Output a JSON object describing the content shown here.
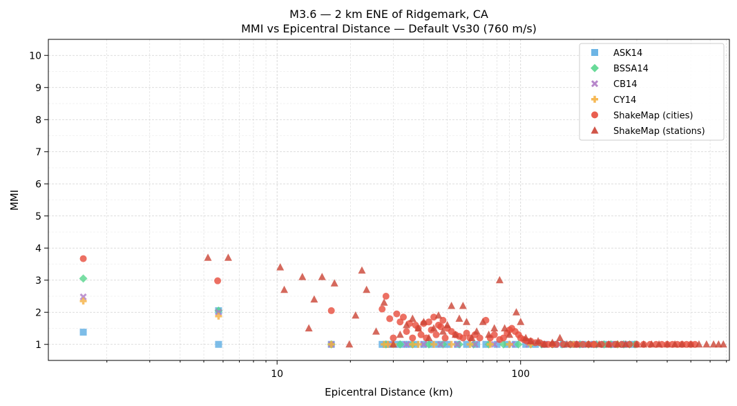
{
  "chart_data": {
    "type": "scatter",
    "title": "M3.6 — 2 km ENE of Ridgemark, CA",
    "subtitle": "MMI vs Epicentral Distance — Default Vs30 (760 m/s)",
    "xlabel": "Epicentral Distance (km)",
    "ylabel": "MMI",
    "xscale": "log",
    "xlim": [
      1.15,
      720
    ],
    "ylim": [
      0.5,
      10.5
    ],
    "xticks": [
      10,
      100
    ],
    "xtick_labels": [
      "10",
      "100"
    ],
    "yticks": [
      1,
      2,
      3,
      4,
      5,
      6,
      7,
      8,
      9,
      10
    ],
    "ytick_labels": [
      "1",
      "2",
      "3",
      "4",
      "5",
      "6",
      "7",
      "8",
      "9",
      "10"
    ],
    "grid": true,
    "legend_position": "top-right",
    "series": [
      {
        "name": "ASK14",
        "marker": "square",
        "color": "#5DADE2",
        "points": [
          [
            1.6,
            1.38
          ],
          [
            5.75,
            2.05
          ],
          [
            5.75,
            1.0
          ],
          [
            16.7,
            1.0
          ],
          [
            27,
            1.0
          ],
          [
            28,
            1.0
          ],
          [
            29,
            1.0
          ],
          [
            31,
            1.0
          ],
          [
            33,
            1.0
          ],
          [
            35,
            1.0
          ],
          [
            37,
            1.0
          ],
          [
            40,
            1.0
          ],
          [
            43,
            1.0
          ],
          [
            46,
            1.0
          ],
          [
            50,
            1.0
          ],
          [
            55,
            1.0
          ],
          [
            60,
            1.0
          ],
          [
            66,
            1.0
          ],
          [
            72,
            1.0
          ],
          [
            80,
            1.0
          ],
          [
            88,
            1.0
          ],
          [
            95,
            1.0
          ],
          [
            105,
            1.0
          ],
          [
            115,
            1.0
          ],
          [
            125,
            1.0
          ],
          [
            138,
            1.0
          ],
          [
            150,
            1.0
          ],
          [
            165,
            1.0
          ],
          [
            180,
            1.0
          ],
          [
            200,
            1.0
          ],
          [
            220,
            1.0
          ],
          [
            240,
            1.0
          ],
          [
            265,
            1.0
          ],
          [
            290,
            1.0
          ]
        ]
      },
      {
        "name": "BSSA14",
        "marker": "diamond",
        "color": "#58D68D",
        "points": [
          [
            1.6,
            3.05
          ],
          [
            5.75,
            2.05
          ],
          [
            16.7,
            1.0
          ],
          [
            28,
            1.0
          ],
          [
            32,
            1.0
          ],
          [
            36,
            1.0
          ],
          [
            42,
            1.0
          ],
          [
            48,
            1.0
          ],
          [
            56,
            1.0
          ],
          [
            64,
            1.0
          ],
          [
            74,
            1.0
          ],
          [
            85,
            1.0
          ],
          [
            98,
            1.0
          ],
          [
            110,
            1.0
          ],
          [
            122,
            1.0
          ],
          [
            135,
            1.0
          ],
          [
            148,
            1.0
          ],
          [
            160,
            1.0
          ],
          [
            175,
            1.0
          ],
          [
            190,
            1.0
          ],
          [
            205,
            1.0
          ],
          [
            220,
            1.0
          ],
          [
            235,
            1.0
          ],
          [
            250,
            1.0
          ],
          [
            265,
            1.0
          ],
          [
            280,
            1.0
          ],
          [
            295,
            1.0
          ]
        ]
      },
      {
        "name": "CB14",
        "marker": "x",
        "color": "#AF7AC5",
        "points": [
          [
            1.6,
            2.48
          ],
          [
            5.75,
            2.0
          ],
          [
            16.7,
            1.0
          ],
          [
            29,
            1.0
          ],
          [
            34,
            1.0
          ],
          [
            40,
            1.0
          ],
          [
            47,
            1.0
          ],
          [
            55,
            1.0
          ],
          [
            65,
            1.0
          ],
          [
            78,
            1.0
          ],
          [
            92,
            1.0
          ],
          [
            108,
            1.0
          ],
          [
            125,
            1.0
          ],
          [
            145,
            1.0
          ],
          [
            170,
            1.0
          ],
          [
            200,
            1.0
          ],
          [
            235,
            1.0
          ],
          [
            270,
            1.0
          ]
        ]
      },
      {
        "name": "CY14",
        "marker": "plus",
        "color": "#F5B041",
        "points": [
          [
            1.6,
            2.35
          ],
          [
            5.75,
            1.88
          ],
          [
            16.7,
            1.0
          ],
          [
            27.5,
            1.0
          ],
          [
            28.5,
            1.0
          ],
          [
            30,
            1.0
          ],
          [
            36,
            1.0
          ],
          [
            38,
            1.0
          ],
          [
            44,
            1.0
          ],
          [
            52,
            1.0
          ],
          [
            62,
            1.0
          ],
          [
            75,
            1.0
          ],
          [
            90,
            1.0
          ],
          [
            110,
            1.0
          ],
          [
            135,
            1.0
          ],
          [
            165,
            1.0
          ],
          [
            200,
            1.0
          ],
          [
            250,
            1.0
          ]
        ]
      },
      {
        "name": "ShakeMap (cities)",
        "marker": "circle",
        "color": "#E74C3C",
        "points": [
          [
            1.6,
            3.67
          ],
          [
            5.7,
            2.98
          ],
          [
            16.7,
            2.05
          ],
          [
            27,
            2.1
          ],
          [
            28,
            2.5
          ],
          [
            29,
            1.8
          ],
          [
            30,
            1.2
          ],
          [
            31,
            1.95
          ],
          [
            32,
            1.7
          ],
          [
            33,
            1.85
          ],
          [
            34,
            1.4
          ],
          [
            35,
            1.65
          ],
          [
            36,
            1.2
          ],
          [
            37,
            1.6
          ],
          [
            38,
            1.5
          ],
          [
            39,
            1.3
          ],
          [
            40,
            1.65
          ],
          [
            41,
            1.2
          ],
          [
            42,
            1.7
          ],
          [
            43,
            1.45
          ],
          [
            44,
            1.85
          ],
          [
            45,
            1.3
          ],
          [
            46,
            1.6
          ],
          [
            47,
            1.55
          ],
          [
            48,
            1.75
          ],
          [
            49,
            1.2
          ],
          [
            50,
            1.5
          ],
          [
            52,
            1.4
          ],
          [
            54,
            1.3
          ],
          [
            56,
            1.25
          ],
          [
            58,
            1.2
          ],
          [
            60,
            1.35
          ],
          [
            62,
            1.2
          ],
          [
            65,
            1.3
          ],
          [
            68,
            1.2
          ],
          [
            72,
            1.75
          ],
          [
            75,
            1.2
          ],
          [
            78,
            1.3
          ],
          [
            82,
            1.15
          ],
          [
            85,
            1.2
          ],
          [
            88,
            1.35
          ],
          [
            90,
            1.45
          ],
          [
            92,
            1.5
          ],
          [
            95,
            1.4
          ],
          [
            98,
            1.3
          ],
          [
            100,
            1.2
          ],
          [
            103,
            1.15
          ],
          [
            106,
            1.1
          ],
          [
            110,
            1.1
          ],
          [
            115,
            1.05
          ],
          [
            120,
            1.05
          ],
          [
            125,
            1.0
          ],
          [
            130,
            1.0
          ],
          [
            135,
            1.0
          ],
          [
            140,
            1.0
          ],
          [
            150,
            1.0
          ],
          [
            160,
            1.0
          ],
          [
            170,
            1.0
          ],
          [
            180,
            1.0
          ],
          [
            190,
            1.0
          ],
          [
            200,
            1.0
          ],
          [
            215,
            1.0
          ],
          [
            230,
            1.0
          ],
          [
            245,
            1.0
          ],
          [
            260,
            1.0
          ],
          [
            280,
            1.0
          ],
          [
            300,
            1.0
          ],
          [
            320,
            1.0
          ],
          [
            340,
            1.0
          ],
          [
            360,
            1.0
          ],
          [
            380,
            1.0
          ],
          [
            400,
            1.0
          ],
          [
            420,
            1.0
          ],
          [
            440,
            1.0
          ],
          [
            460,
            1.0
          ],
          [
            480,
            1.0
          ],
          [
            500,
            1.0
          ],
          [
            520,
            1.0
          ]
        ]
      },
      {
        "name": "ShakeMap (stations)",
        "marker": "triangle",
        "color": "#CB4335",
        "points": [
          [
            5.2,
            3.7
          ],
          [
            6.3,
            3.7
          ],
          [
            10.3,
            3.4
          ],
          [
            10.7,
            2.7
          ],
          [
            12.7,
            3.1
          ],
          [
            13.5,
            1.5
          ],
          [
            14.2,
            2.4
          ],
          [
            15.3,
            3.1
          ],
          [
            17.2,
            2.9
          ],
          [
            19.8,
            1.0
          ],
          [
            21.0,
            1.9
          ],
          [
            22.3,
            3.3
          ],
          [
            23.3,
            2.7
          ],
          [
            25.5,
            1.4
          ],
          [
            27.5,
            2.3
          ],
          [
            30,
            1.0
          ],
          [
            32,
            1.3
          ],
          [
            34,
            1.6
          ],
          [
            36,
            1.8
          ],
          [
            38,
            1.5
          ],
          [
            40,
            1.7
          ],
          [
            42,
            1.2
          ],
          [
            44,
            1.5
          ],
          [
            46,
            1.9
          ],
          [
            48,
            1.4
          ],
          [
            50,
            1.6
          ],
          [
            52,
            2.2
          ],
          [
            54,
            1.3
          ],
          [
            56,
            1.8
          ],
          [
            58,
            2.2
          ],
          [
            60,
            1.7
          ],
          [
            63,
            1.2
          ],
          [
            66,
            1.4
          ],
          [
            70,
            1.7
          ],
          [
            74,
            1.3
          ],
          [
            78,
            1.5
          ],
          [
            82,
            3.0
          ],
          [
            86,
            1.5
          ],
          [
            90,
            1.3
          ],
          [
            96,
            2.0
          ],
          [
            100,
            1.7
          ],
          [
            105,
            1.2
          ],
          [
            110,
            1.1
          ],
          [
            118,
            1.1
          ],
          [
            125,
            1.0
          ],
          [
            135,
            1.05
          ],
          [
            145,
            1.2
          ],
          [
            155,
            1.0
          ],
          [
            170,
            1.0
          ],
          [
            190,
            1.0
          ],
          [
            210,
            1.0
          ],
          [
            230,
            1.0
          ],
          [
            250,
            1.0
          ],
          [
            270,
            1.0
          ],
          [
            300,
            1.0
          ],
          [
            320,
            1.0
          ],
          [
            345,
            1.0
          ],
          [
            370,
            1.0
          ],
          [
            400,
            1.0
          ],
          [
            430,
            1.0
          ],
          [
            460,
            1.0
          ],
          [
            500,
            1.0
          ],
          [
            540,
            1.0
          ],
          [
            580,
            1.0
          ],
          [
            620,
            1.0
          ],
          [
            650,
            1.0
          ],
          [
            680,
            1.0
          ]
        ]
      }
    ]
  }
}
